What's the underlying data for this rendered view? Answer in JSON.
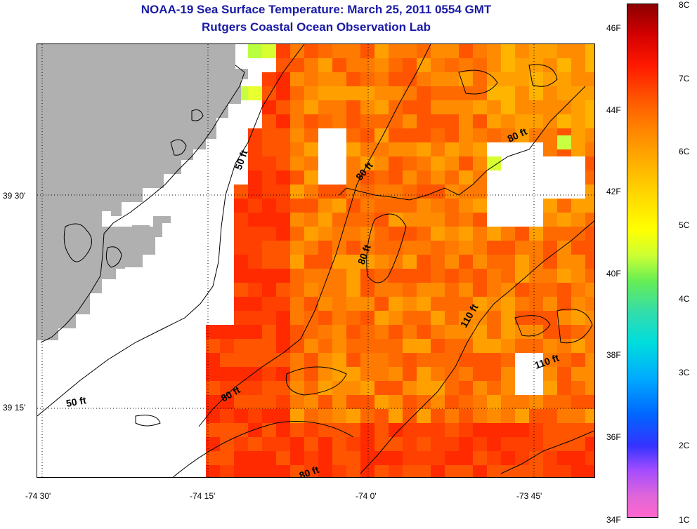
{
  "title": "NOAA-19 Sea Surface Temperature:  March 25, 2011 0554 GMT",
  "subtitle": "Rutgers Coastal Ocean Observation Lab",
  "map": {
    "lat_labels": [
      {
        "text": "39 30'",
        "lat": 39.5
      },
      {
        "text": "39 15'",
        "lat": 39.25
      }
    ],
    "lon_labels": [
      {
        "text": "-74 30'",
        "lon": -74.5
      },
      {
        "text": "-74 15'",
        "lon": -74.25
      },
      {
        "text": "-74 0'",
        "lon": -74.0
      },
      {
        "text": "-73 45'",
        "lon": -73.75
      }
    ],
    "contour_labels": [
      {
        "text": "50 ft"
      },
      {
        "text": "80 ft"
      },
      {
        "text": "80 ft"
      },
      {
        "text": "80 ft"
      },
      {
        "text": "110 ft"
      },
      {
        "text": "110 ft"
      },
      {
        "text": "80 ft"
      },
      {
        "text": "50 ft"
      },
      {
        "text": "80 ft"
      }
    ],
    "colors": {
      "land": "#b0b0b0",
      "no_data": "#ffffff",
      "coastline": "#000000",
      "contour": "#000000",
      "grid": "#000000"
    }
  },
  "colorbar": {
    "fahrenheit_labels": [
      "46F",
      "44F",
      "42F",
      "40F",
      "38F",
      "36F",
      "34F"
    ],
    "celsius_labels": [
      "8C",
      "7C",
      "6C",
      "5C",
      "4C",
      "3C",
      "2C",
      "1C"
    ],
    "title_color": "#1a1aa6"
  }
}
